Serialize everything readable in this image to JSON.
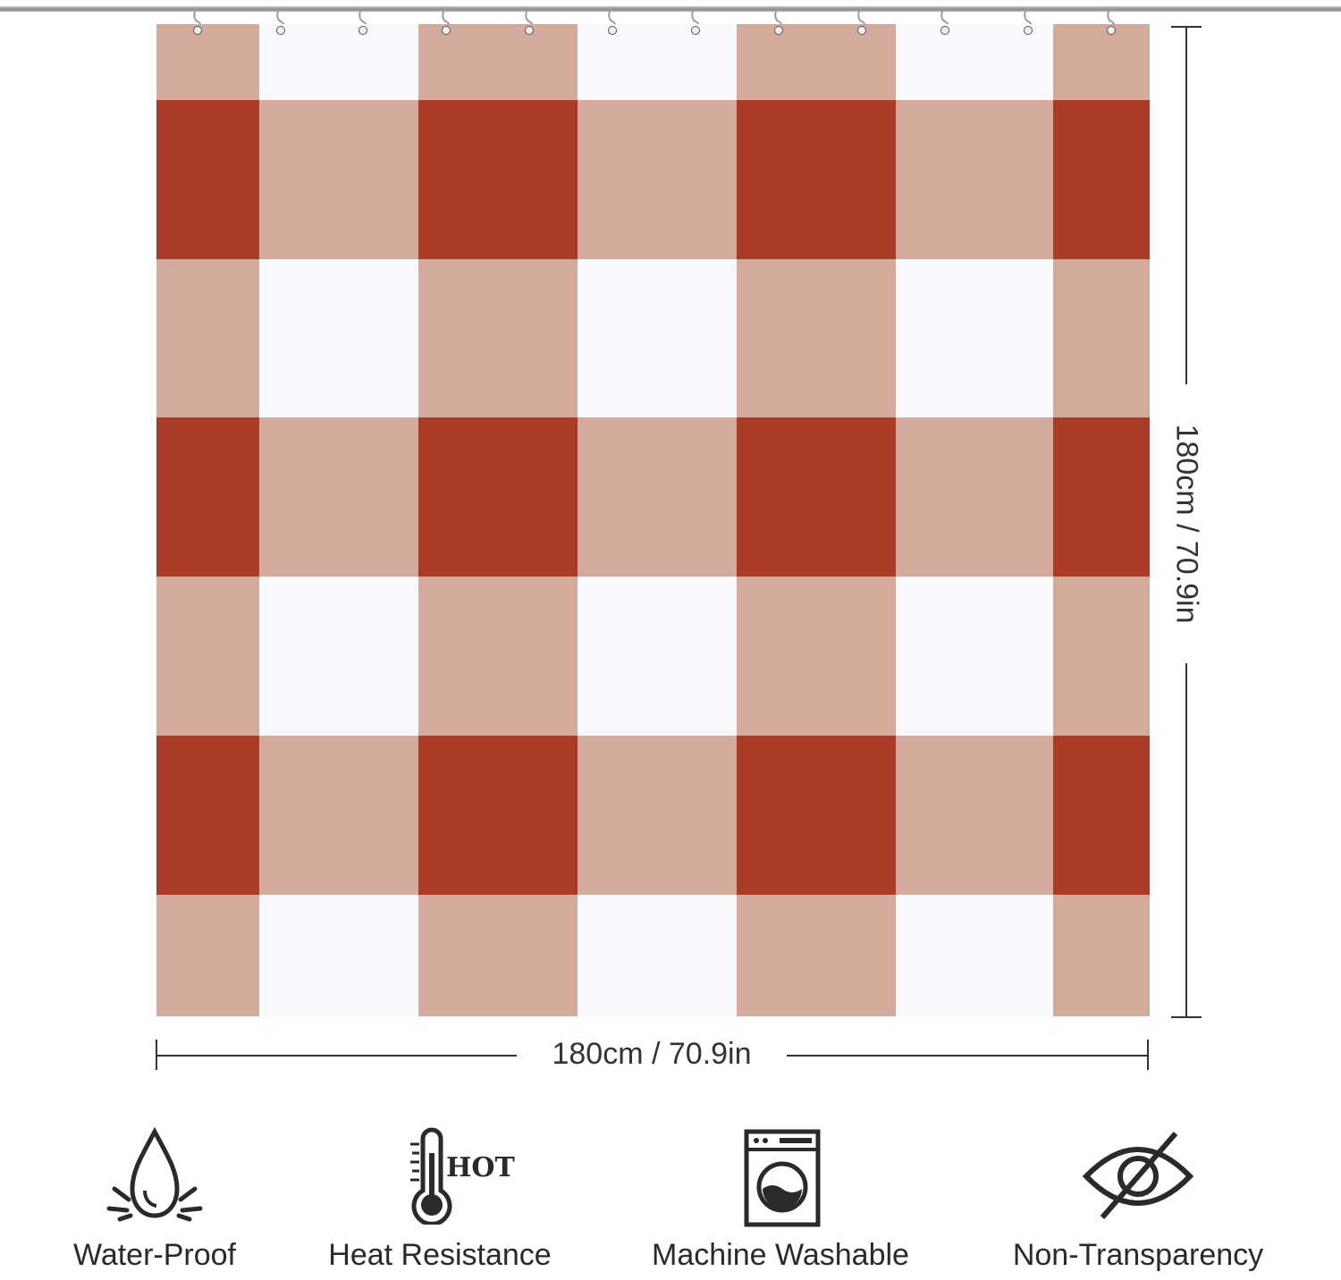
{
  "colors": {
    "dark": "#ab3b26",
    "mid": "#d4aa9c",
    "light": "#f8f9fd"
  },
  "dimensions": {
    "width_label": "180cm / 70.9in",
    "height_label": "180cm / 70.9in"
  },
  "features": [
    {
      "label": "Water-Proof",
      "icon": "water-drop-icon"
    },
    {
      "label": "Heat Resistance",
      "icon": "thermometer-icon",
      "icon_text": "HOT"
    },
    {
      "label": "Machine Washable",
      "icon": "washing-machine-icon"
    },
    {
      "label": "Non-Transparency",
      "icon": "eye-slash-icon"
    }
  ]
}
